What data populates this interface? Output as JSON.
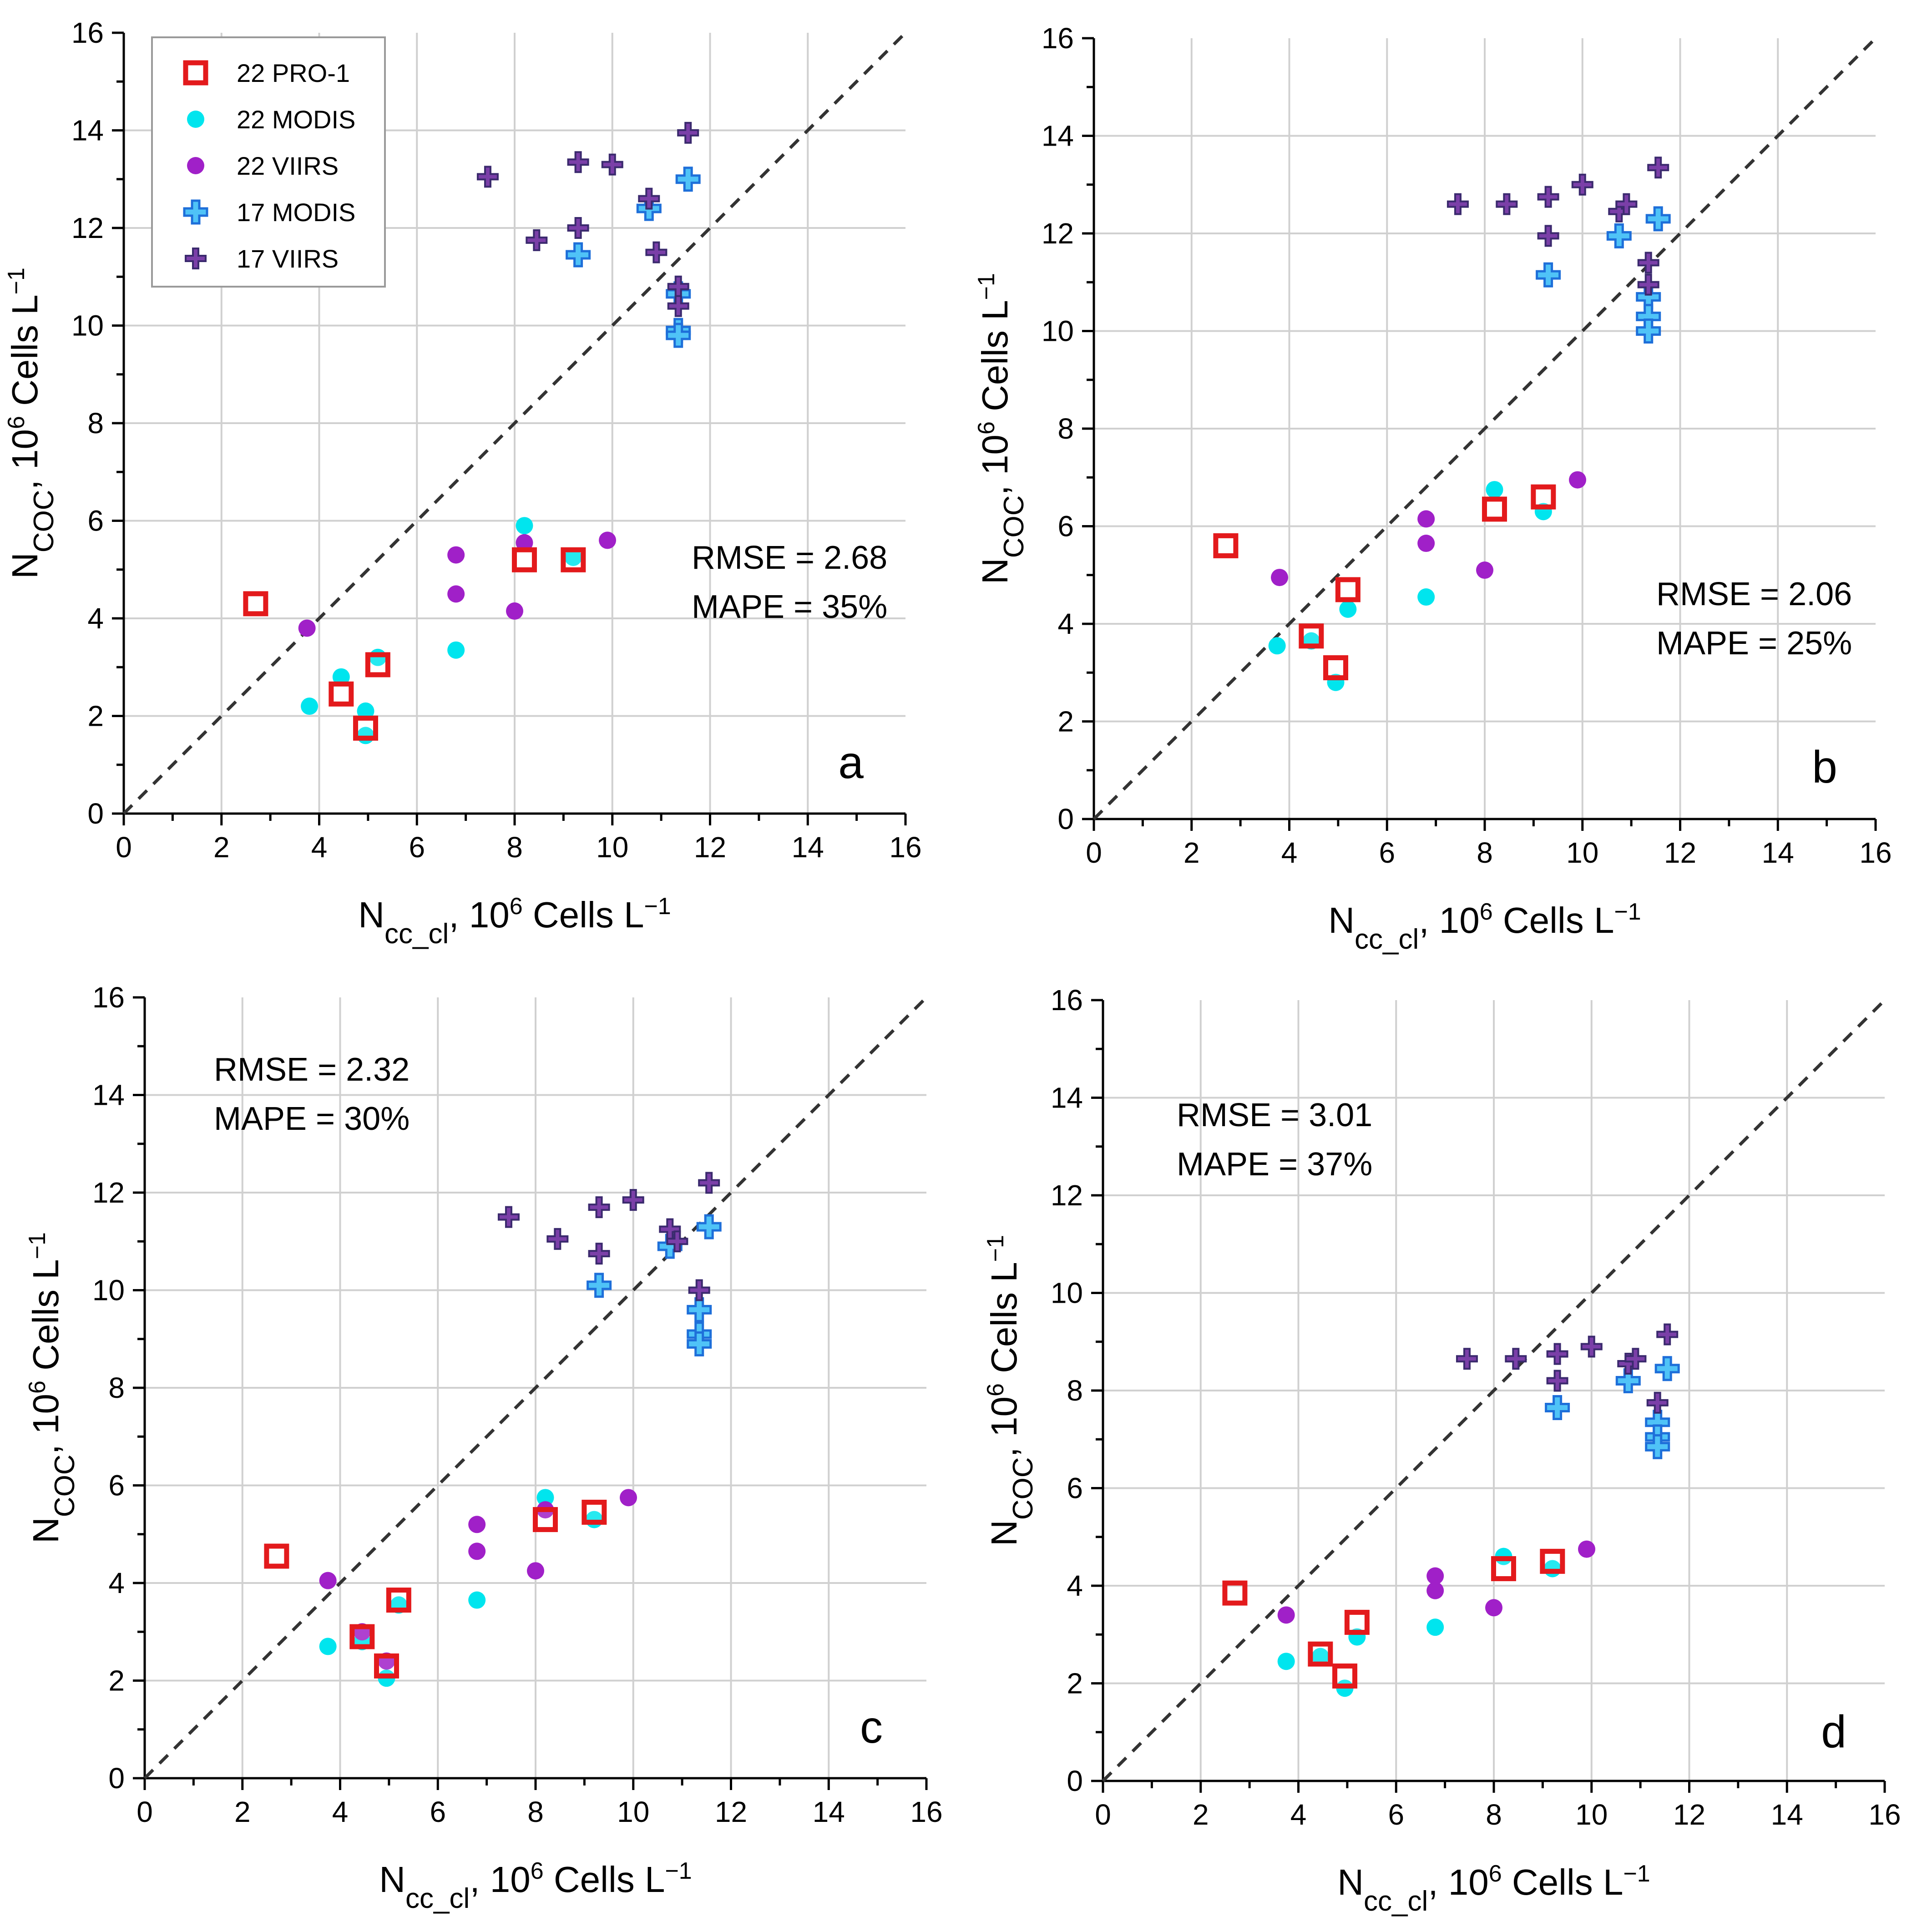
{
  "figure": {
    "description_free": true
  },
  "legend": {
    "entries": [
      {
        "label": "22 PRO-1",
        "marker": "square-open",
        "color": "#e31a1c"
      },
      {
        "label": "22 MODIS",
        "marker": "circle",
        "color": "#00e5ee"
      },
      {
        "label": "22 VIIRS",
        "marker": "circle",
        "color": "#a020c8"
      },
      {
        "label": "17 MODIS",
        "marker": "plus",
        "color": "#1e90ff"
      },
      {
        "label": "17 VIIRS",
        "marker": "plus",
        "color": "#5b3a9a"
      }
    ]
  },
  "colors": {
    "pro1": "#e31a1c",
    "modis22": "#00e5ee",
    "viirs22": "#a020c8",
    "modis17_fill": "#4fc3f7",
    "modis17_edge": "#1e6fd9",
    "viirs17_fill": "#7b3fa8",
    "viirs17_edge": "#3b2a6e",
    "grid": "#d0d0d0"
  },
  "chart_data": [
    {
      "type": "scatter",
      "panel": "a",
      "xlabel_main": "N",
      "xlabel_sub": "cc_cl",
      "xlabel_rest": ", 10",
      "xlabel_sup": "6",
      "xlabel_unit": " Cells L",
      "xlabel_unit_sup": "−1",
      "ylabel_main": "N",
      "ylabel_sub": "COC",
      "ylabel_rest": ", 10",
      "ylabel_sup": "6",
      "ylabel_unit": " Cells L",
      "ylabel_unit_sup": "−1",
      "xlim": [
        0,
        16
      ],
      "ylim": [
        0,
        16
      ],
      "xticks": [
        "0",
        "2",
        "4",
        "6",
        "8",
        "10",
        "12",
        "14",
        "16"
      ],
      "yticks": [
        "0",
        "2",
        "4",
        "6",
        "8",
        "10",
        "12",
        "14",
        "16"
      ],
      "rmse": "RMSE = 2.68",
      "mape": "MAPE = 35%",
      "series": [
        {
          "name": "22 MODIS",
          "points": [
            [
              3.8,
              2.2
            ],
            [
              4.45,
              2.8
            ],
            [
              4.95,
              2.1
            ],
            [
              4.95,
              1.6
            ],
            [
              5.2,
              3.2
            ],
            [
              6.8,
              3.35
            ],
            [
              8.2,
              5.9
            ],
            [
              9.2,
              5.25
            ]
          ]
        },
        {
          "name": "22 VIIRS",
          "points": [
            [
              3.75,
              3.8
            ],
            [
              6.8,
              5.3
            ],
            [
              6.8,
              4.5
            ],
            [
              8.0,
              4.15
            ],
            [
              8.2,
              5.55
            ],
            [
              9.9,
              5.6
            ]
          ]
        },
        {
          "name": "22 PRO-1",
          "points": [
            [
              2.7,
              4.3
            ],
            [
              4.45,
              2.45
            ],
            [
              4.95,
              1.75
            ],
            [
              5.2,
              3.05
            ],
            [
              8.2,
              5.2
            ],
            [
              9.2,
              5.2
            ]
          ]
        },
        {
          "name": "17 MODIS",
          "points": [
            [
              9.3,
              11.45
            ],
            [
              10.75,
              12.4
            ],
            [
              11.35,
              10.65
            ],
            [
              11.35,
              9.9
            ],
            [
              11.35,
              9.8
            ],
            [
              11.55,
              13.0
            ]
          ]
        },
        {
          "name": "17 VIIRS",
          "points": [
            [
              7.45,
              13.05
            ],
            [
              8.45,
              11.75
            ],
            [
              9.3,
              13.35
            ],
            [
              9.3,
              12.0
            ],
            [
              10.0,
              13.3
            ],
            [
              10.75,
              12.6
            ],
            [
              10.9,
              11.5
            ],
            [
              11.35,
              10.8
            ],
            [
              11.35,
              10.4
            ],
            [
              11.55,
              13.95
            ]
          ]
        }
      ]
    },
    {
      "type": "scatter",
      "panel": "b",
      "xlabel_main": "N",
      "xlabel_sub": "cc_cl",
      "xlabel_rest": ", 10",
      "xlabel_sup": "6",
      "xlabel_unit": " Cells L",
      "xlabel_unit_sup": "−1",
      "ylabel_main": "N",
      "ylabel_sub": "COC",
      "ylabel_rest": ", 10",
      "ylabel_sup": "6",
      "ylabel_unit": " Cells L",
      "ylabel_unit_sup": "−1",
      "xlim": [
        0,
        16
      ],
      "ylim": [
        0,
        16
      ],
      "xticks": [
        "0",
        "2",
        "4",
        "6",
        "8",
        "10",
        "12",
        "14",
        "16"
      ],
      "yticks": [
        "0",
        "2",
        "4",
        "6",
        "8",
        "10",
        "12",
        "14",
        "16"
      ],
      "rmse": "RMSE = 2.06",
      "mape": "MAPE = 25%",
      "series": [
        {
          "name": "22 MODIS",
          "points": [
            [
              3.75,
              3.55
            ],
            [
              4.45,
              3.65
            ],
            [
              4.95,
              2.8
            ],
            [
              5.2,
              4.3
            ],
            [
              6.8,
              4.55
            ],
            [
              8.2,
              6.75
            ],
            [
              9.2,
              6.3
            ]
          ]
        },
        {
          "name": "22 VIIRS",
          "points": [
            [
              3.8,
              4.95
            ],
            [
              6.8,
              6.15
            ],
            [
              6.8,
              5.65
            ],
            [
              8.0,
              5.1
            ],
            [
              9.9,
              6.95
            ]
          ]
        },
        {
          "name": "22 PRO-1",
          "points": [
            [
              2.7,
              5.6
            ],
            [
              4.45,
              3.75
            ],
            [
              4.95,
              3.1
            ],
            [
              5.2,
              4.7
            ],
            [
              8.2,
              6.35
            ],
            [
              9.2,
              6.6
            ]
          ]
        },
        {
          "name": "17 MODIS",
          "points": [
            [
              9.3,
              11.15
            ],
            [
              10.75,
              11.95
            ],
            [
              11.35,
              10.7
            ],
            [
              11.35,
              10.3
            ],
            [
              11.35,
              10.0
            ],
            [
              11.55,
              12.3
            ]
          ]
        },
        {
          "name": "17 VIIRS",
          "points": [
            [
              7.45,
              12.6
            ],
            [
              8.45,
              12.6
            ],
            [
              9.3,
              12.75
            ],
            [
              9.3,
              11.95
            ],
            [
              10.0,
              13.0
            ],
            [
              10.75,
              12.45
            ],
            [
              10.9,
              12.6
            ],
            [
              11.35,
              11.4
            ],
            [
              11.35,
              10.95
            ],
            [
              11.55,
              13.35
            ]
          ]
        }
      ]
    },
    {
      "type": "scatter",
      "panel": "c",
      "xlabel_main": "N",
      "xlabel_sub": "cc_cl",
      "xlabel_rest": ", 10",
      "xlabel_sup": "6",
      "xlabel_unit": " Cells L",
      "xlabel_unit_sup": "−1",
      "ylabel_main": "N",
      "ylabel_sub": "COC",
      "ylabel_rest": ", 10",
      "ylabel_sup": "6",
      "ylabel_unit": " Cells L",
      "ylabel_unit_sup": "−1",
      "xlim": [
        0,
        16
      ],
      "ylim": [
        0,
        16
      ],
      "xticks": [
        "0",
        "2",
        "4",
        "6",
        "8",
        "10",
        "12",
        "14",
        "16"
      ],
      "yticks": [
        "0",
        "2",
        "4",
        "6",
        "8",
        "10",
        "12",
        "14",
        "16"
      ],
      "rmse": "RMSE = 2.32",
      "mape": "MAPE = 30%",
      "series": [
        {
          "name": "22 MODIS",
          "points": [
            [
              3.75,
              2.7
            ],
            [
              4.45,
              2.8
            ],
            [
              4.95,
              2.05
            ],
            [
              5.2,
              3.55
            ],
            [
              6.8,
              3.65
            ],
            [
              8.2,
              5.75
            ],
            [
              9.2,
              5.3
            ]
          ]
        },
        {
          "name": "22 VIIRS",
          "points": [
            [
              3.75,
              4.05
            ],
            [
              4.45,
              3.0
            ],
            [
              4.95,
              2.4
            ],
            [
              6.8,
              5.2
            ],
            [
              6.8,
              4.65
            ],
            [
              8.0,
              4.25
            ],
            [
              8.2,
              5.5
            ],
            [
              9.9,
              5.75
            ]
          ]
        },
        {
          "name": "22 PRO-1",
          "points": [
            [
              2.7,
              4.55
            ],
            [
              4.45,
              2.9
            ],
            [
              4.95,
              2.3
            ],
            [
              5.2,
              3.65
            ],
            [
              8.2,
              5.3
            ],
            [
              9.2,
              5.45
            ]
          ]
        },
        {
          "name": "17 MODIS",
          "points": [
            [
              9.3,
              10.1
            ],
            [
              10.75,
              10.9
            ],
            [
              11.35,
              9.6
            ],
            [
              11.35,
              9.1
            ],
            [
              11.35,
              8.9
            ],
            [
              11.55,
              11.3
            ]
          ]
        },
        {
          "name": "17 VIIRS",
          "points": [
            [
              7.45,
              11.5
            ],
            [
              8.45,
              11.05
            ],
            [
              9.3,
              11.7
            ],
            [
              9.3,
              10.75
            ],
            [
              10.0,
              11.85
            ],
            [
              10.75,
              11.25
            ],
            [
              10.9,
              11.0
            ],
            [
              11.35,
              10.0
            ],
            [
              11.55,
              12.2
            ]
          ]
        }
      ]
    },
    {
      "type": "scatter",
      "panel": "d",
      "xlabel_main": "N",
      "xlabel_sub": "cc_cl",
      "xlabel_rest": ", 10",
      "xlabel_sup": "6",
      "xlabel_unit": " Cells L",
      "xlabel_unit_sup": "−1",
      "ylabel_main": "N",
      "ylabel_sub": "COC",
      "ylabel_rest": ", 10",
      "ylabel_sup": "6",
      "ylabel_unit": " Cells L",
      "ylabel_unit_sup": "−1",
      "xlim": [
        0,
        16
      ],
      "ylim": [
        0,
        16
      ],
      "xticks": [
        "0",
        "2",
        "4",
        "6",
        "8",
        "10",
        "12",
        "14",
        "16"
      ],
      "yticks": [
        "0",
        "2",
        "4",
        "6",
        "8",
        "10",
        "12",
        "14",
        "16"
      ],
      "rmse": "RMSE = 3.01",
      "mape": "MAPE = 37%",
      "series": [
        {
          "name": "22 MODIS",
          "points": [
            [
              3.75,
              2.45
            ],
            [
              4.45,
              2.55
            ],
            [
              4.95,
              1.9
            ],
            [
              5.2,
              2.95
            ],
            [
              6.8,
              3.15
            ],
            [
              8.2,
              4.6
            ],
            [
              9.2,
              4.35
            ]
          ]
        },
        {
          "name": "22 VIIRS",
          "points": [
            [
              3.75,
              3.4
            ],
            [
              6.8,
              4.2
            ],
            [
              6.8,
              3.9
            ],
            [
              8.0,
              3.55
            ],
            [
              9.9,
              4.75
            ]
          ]
        },
        {
          "name": "22 PRO-1",
          "points": [
            [
              2.7,
              3.85
            ],
            [
              4.45,
              2.6
            ],
            [
              4.95,
              2.15
            ],
            [
              5.2,
              3.25
            ],
            [
              8.2,
              4.35
            ],
            [
              9.2,
              4.5
            ]
          ]
        },
        {
          "name": "17 MODIS",
          "points": [
            [
              9.3,
              7.65
            ],
            [
              10.75,
              8.2
            ],
            [
              11.35,
              7.35
            ],
            [
              11.35,
              7.05
            ],
            [
              11.35,
              6.85
            ],
            [
              11.55,
              8.45
            ]
          ]
        },
        {
          "name": "17 VIIRS",
          "points": [
            [
              7.45,
              8.65
            ],
            [
              8.45,
              8.65
            ],
            [
              9.3,
              8.75
            ],
            [
              9.3,
              8.2
            ],
            [
              10.0,
              8.9
            ],
            [
              10.75,
              8.55
            ],
            [
              10.9,
              8.65
            ],
            [
              11.35,
              7.75
            ],
            [
              11.55,
              9.15
            ]
          ]
        }
      ]
    }
  ]
}
